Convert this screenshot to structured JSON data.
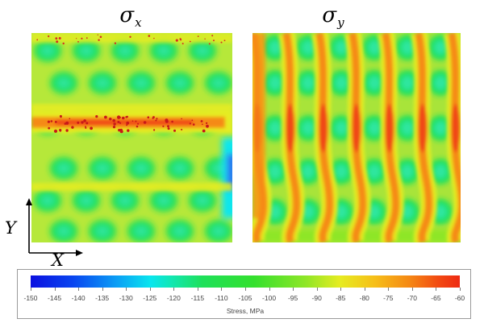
{
  "maps": {
    "left": {
      "symbol": "σ",
      "subscript": "x"
    },
    "right": {
      "symbol": "σ",
      "subscript": "y"
    }
  },
  "axes": {
    "x_label": "X",
    "y_label": "Y"
  },
  "colorbar": {
    "ticks": [
      "-150",
      "-145",
      "-140",
      "-135",
      "-130",
      "-125",
      "-120",
      "-115",
      "-110",
      "-105",
      "-100",
      "-95",
      "-90",
      "-85",
      "-80",
      "-75",
      "-70",
      "-65",
      "-60"
    ],
    "unit_label": "Stress, MPa",
    "range": [
      -150,
      -60
    ]
  },
  "colors": {
    "map_base": "#b6e83a",
    "low_blue": "#0b10e0",
    "cyan": "#09e6ee",
    "green": "#1ee05a",
    "yellow": "#e6ec22",
    "orange": "#f58a14",
    "red": "#ee2a12"
  }
}
